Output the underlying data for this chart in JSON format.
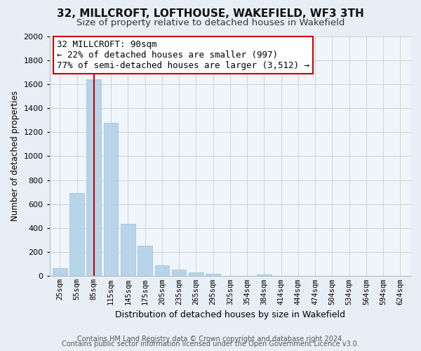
{
  "title": "32, MILLCROFT, LOFTHOUSE, WAKEFIELD, WF3 3TH",
  "subtitle": "Size of property relative to detached houses in Wakefield",
  "xlabel": "Distribution of detached houses by size in Wakefield",
  "ylabel": "Number of detached properties",
  "bar_labels": [
    "25sqm",
    "55sqm",
    "85sqm",
    "115sqm",
    "145sqm",
    "175sqm",
    "205sqm",
    "235sqm",
    "265sqm",
    "295sqm",
    "325sqm",
    "354sqm",
    "384sqm",
    "414sqm",
    "444sqm",
    "474sqm",
    "504sqm",
    "534sqm",
    "564sqm",
    "594sqm",
    "624sqm"
  ],
  "bar_values": [
    65,
    695,
    1640,
    1280,
    435,
    255,
    90,
    52,
    30,
    20,
    0,
    0,
    13,
    0,
    0,
    0,
    0,
    0,
    0,
    0,
    0
  ],
  "bar_color": "#b8d4e8",
  "bar_edge_color": "#a0bcd4",
  "vline_x": 2,
  "vline_color": "#cc0000",
  "annotation_line1": "32 MILLCROFT: 90sqm",
  "annotation_line2": "← 22% of detached houses are smaller (997)",
  "annotation_line3": "77% of semi-detached houses are larger (3,512) →",
  "annotation_box_color": "#ffffff",
  "annotation_box_edge": "#cc0000",
  "ylim": [
    0,
    2000
  ],
  "yticks": [
    0,
    200,
    400,
    600,
    800,
    1000,
    1200,
    1400,
    1600,
    1800,
    2000
  ],
  "footer_line1": "Contains HM Land Registry data © Crown copyright and database right 2024.",
  "footer_line2": "Contains public sector information licensed under the Open Government Licence v3.0.",
  "bg_color": "#e8eef5",
  "plot_bg_color": "#f0f5fa",
  "title_fontsize": 11,
  "subtitle_fontsize": 9.5,
  "annotation_fontsize": 9,
  "footer_fontsize": 7,
  "ylabel_fontsize": 8.5,
  "xlabel_fontsize": 9
}
